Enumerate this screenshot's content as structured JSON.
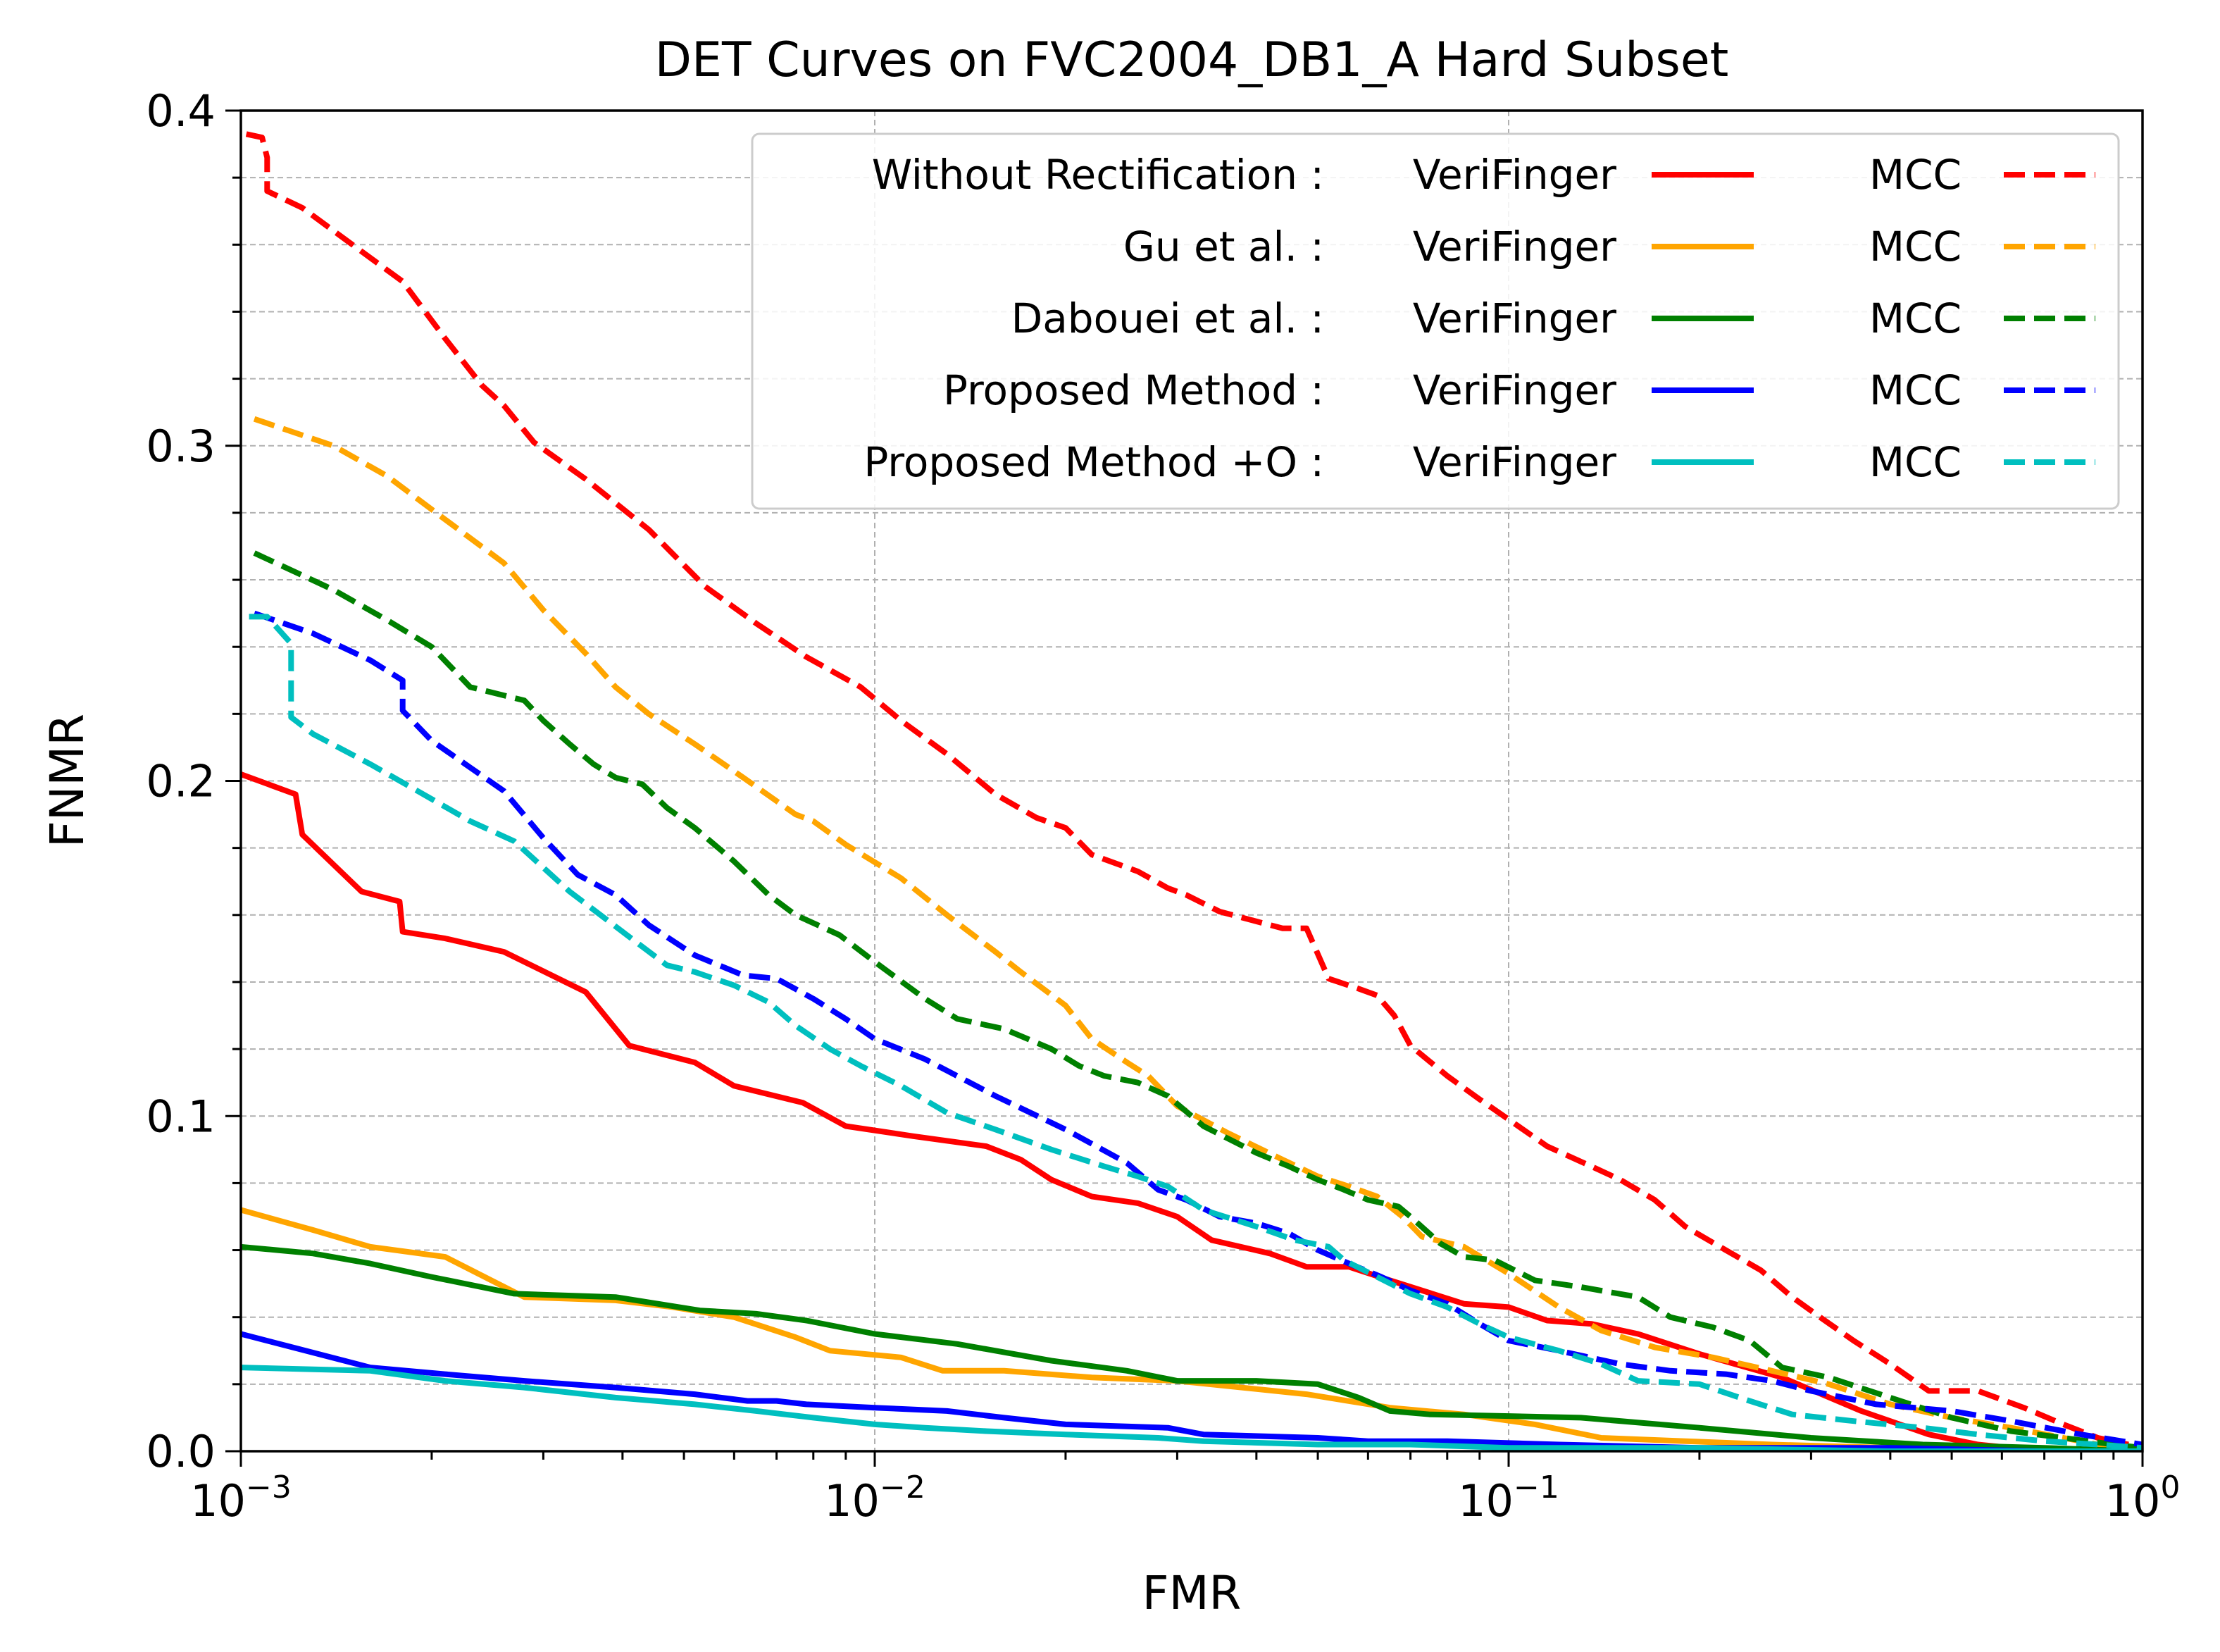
{
  "chart_data": {
    "type": "line",
    "title": "DET Curves on FVC2004_DB1_A Hard Subset",
    "xlabel": "FMR",
    "ylabel": "FNMR",
    "xscale": "log",
    "xlim": [
      0.001,
      1
    ],
    "ylim": [
      0,
      0.4
    ],
    "x_ticks": [
      {
        "value": 0.001,
        "base": "10",
        "exp": "−3"
      },
      {
        "value": 0.01,
        "base": "10",
        "exp": "−2"
      },
      {
        "value": 0.1,
        "base": "10",
        "exp": "−1"
      },
      {
        "value": 1,
        "base": "10",
        "exp": "0"
      }
    ],
    "y_ticks": [
      {
        "value": 0.0,
        "label": "0.0"
      },
      {
        "value": 0.1,
        "label": "0.1"
      },
      {
        "value": 0.2,
        "label": "0.2"
      },
      {
        "value": 0.3,
        "label": "0.3"
      },
      {
        "value": 0.4,
        "label": "0.4"
      }
    ],
    "grid": true,
    "legend_position": "top-right",
    "legend_rows": [
      {
        "method": "Without Rectification :",
        "color": "#ff0000",
        "solid_label": "VeriFinger",
        "dashed_label": "MCC"
      },
      {
        "method": "Gu et al. :",
        "color": "#ffa500",
        "solid_label": "VeriFinger",
        "dashed_label": "MCC"
      },
      {
        "method": "Dabouei et al. :",
        "color": "#008000",
        "solid_label": "VeriFinger",
        "dashed_label": "MCC"
      },
      {
        "method": "Proposed Method :",
        "color": "#0000ff",
        "solid_label": "VeriFinger",
        "dashed_label": "MCC"
      },
      {
        "method": "Proposed Method +O :",
        "color": "#00bfbf",
        "solid_label": "VeriFinger",
        "dashed_label": "MCC"
      }
    ],
    "series": [
      {
        "name": "Without Rectification : VeriFinger",
        "color": "#ff0000",
        "style": "solid",
        "x": [
          0.001,
          0.00122,
          0.00125,
          0.00155,
          0.00178,
          0.0018,
          0.0021,
          0.0026,
          0.0035,
          0.0041,
          0.0052,
          0.006,
          0.0077,
          0.009,
          0.0115,
          0.015,
          0.017,
          0.019,
          0.022,
          0.026,
          0.03,
          0.034,
          0.042,
          0.048,
          0.056,
          0.065,
          0.085,
          0.1,
          0.115,
          0.135,
          0.16,
          0.2,
          0.27,
          0.36,
          0.46,
          0.55,
          0.7,
          1.0
        ],
        "y": [
          0.202,
          0.196,
          0.184,
          0.167,
          0.164,
          0.155,
          0.153,
          0.149,
          0.137,
          0.121,
          0.116,
          0.109,
          0.104,
          0.097,
          0.094,
          0.091,
          0.087,
          0.081,
          0.076,
          0.074,
          0.07,
          0.063,
          0.059,
          0.055,
          0.055,
          0.051,
          0.044,
          0.043,
          0.039,
          0.038,
          0.035,
          0.029,
          0.022,
          0.012,
          0.005,
          0.002,
          0.0,
          0.0
        ]
      },
      {
        "name": "Without Rectification : MCC",
        "color": "#ff0000",
        "style": "dashed",
        "x": [
          0.00102,
          0.00108,
          0.0011,
          0.0011,
          0.00125,
          0.00155,
          0.0018,
          0.0021,
          0.0024,
          0.0026,
          0.0029,
          0.0035,
          0.0044,
          0.0054,
          0.0065,
          0.0078,
          0.0095,
          0.011,
          0.013,
          0.0155,
          0.018,
          0.02,
          0.022,
          0.026,
          0.029,
          0.031,
          0.035,
          0.044,
          0.048,
          0.052,
          0.058,
          0.062,
          0.066,
          0.07,
          0.08,
          0.09,
          0.1,
          0.115,
          0.135,
          0.15,
          0.17,
          0.19,
          0.22,
          0.25,
          0.28,
          0.31,
          0.35,
          0.4,
          0.46,
          0.55,
          0.65,
          0.75,
          0.85,
          0.95
        ],
        "y": [
          0.393,
          0.392,
          0.386,
          0.376,
          0.371,
          0.358,
          0.349,
          0.332,
          0.318,
          0.312,
          0.301,
          0.29,
          0.275,
          0.258,
          0.247,
          0.237,
          0.228,
          0.218,
          0.208,
          0.196,
          0.189,
          0.186,
          0.178,
          0.173,
          0.168,
          0.166,
          0.161,
          0.156,
          0.156,
          0.141,
          0.138,
          0.136,
          0.13,
          0.121,
          0.112,
          0.105,
          0.099,
          0.091,
          0.085,
          0.081,
          0.075,
          0.067,
          0.06,
          0.054,
          0.046,
          0.04,
          0.033,
          0.026,
          0.018,
          0.018,
          0.013,
          0.008,
          0.004,
          0.002
        ]
      },
      {
        "name": "Gu et al. : VeriFinger",
        "color": "#ffa500",
        "style": "solid",
        "x": [
          0.001,
          0.0013,
          0.0016,
          0.0021,
          0.0028,
          0.0039,
          0.0048,
          0.006,
          0.0075,
          0.0085,
          0.011,
          0.0128,
          0.016,
          0.022,
          0.03,
          0.048,
          0.065,
          0.085,
          0.11,
          0.14,
          0.19,
          0.26,
          0.4,
          0.6,
          1.0
        ],
        "y": [
          0.072,
          0.066,
          0.061,
          0.058,
          0.046,
          0.045,
          0.043,
          0.04,
          0.034,
          0.03,
          0.028,
          0.024,
          0.024,
          0.022,
          0.021,
          0.017,
          0.013,
          0.011,
          0.008,
          0.004,
          0.003,
          0.002,
          0.001,
          0.0,
          0.0
        ]
      },
      {
        "name": "Gu et al. : MCC",
        "color": "#ffa500",
        "style": "dashed",
        "x": [
          0.00105,
          0.0014,
          0.0017,
          0.0021,
          0.0026,
          0.003,
          0.0035,
          0.0039,
          0.0044,
          0.0052,
          0.0062,
          0.0075,
          0.008,
          0.009,
          0.011,
          0.013,
          0.0155,
          0.017,
          0.02,
          0.022,
          0.025,
          0.027,
          0.03,
          0.036,
          0.044,
          0.05,
          0.056,
          0.062,
          0.068,
          0.073,
          0.085,
          0.1,
          0.12,
          0.14,
          0.17,
          0.21,
          0.26,
          0.32,
          0.4,
          0.5,
          0.62,
          0.75,
          0.85,
          1.0
        ],
        "y": [
          0.308,
          0.3,
          0.291,
          0.278,
          0.265,
          0.251,
          0.238,
          0.228,
          0.22,
          0.211,
          0.201,
          0.19,
          0.188,
          0.181,
          0.171,
          0.16,
          0.149,
          0.143,
          0.133,
          0.123,
          0.116,
          0.112,
          0.103,
          0.095,
          0.087,
          0.082,
          0.079,
          0.076,
          0.07,
          0.064,
          0.061,
          0.053,
          0.043,
          0.036,
          0.031,
          0.028,
          0.024,
          0.02,
          0.014,
          0.01,
          0.007,
          0.004,
          0.002,
          0.001
        ]
      },
      {
        "name": "Dabouei et al. : VeriFinger",
        "color": "#008000",
        "style": "solid",
        "x": [
          0.001,
          0.0013,
          0.0016,
          0.002,
          0.0027,
          0.0039,
          0.0053,
          0.0065,
          0.0078,
          0.01,
          0.0135,
          0.019,
          0.025,
          0.03,
          0.04,
          0.05,
          0.058,
          0.065,
          0.075,
          0.13,
          0.2,
          0.3,
          0.45,
          0.7,
          1.0
        ],
        "y": [
          0.061,
          0.059,
          0.056,
          0.052,
          0.047,
          0.046,
          0.042,
          0.041,
          0.039,
          0.035,
          0.032,
          0.027,
          0.024,
          0.021,
          0.021,
          0.02,
          0.016,
          0.012,
          0.011,
          0.01,
          0.007,
          0.004,
          0.002,
          0.001,
          0.0
        ]
      },
      {
        "name": "Dabouei et al. : MCC",
        "color": "#008000",
        "style": "dashed",
        "x": [
          0.00105,
          0.0014,
          0.0017,
          0.002,
          0.0023,
          0.0028,
          0.003,
          0.0033,
          0.0036,
          0.0039,
          0.0043,
          0.0047,
          0.0052,
          0.006,
          0.0068,
          0.0075,
          0.0088,
          0.01,
          0.012,
          0.0135,
          0.016,
          0.019,
          0.021,
          0.023,
          0.026,
          0.029,
          0.033,
          0.04,
          0.045,
          0.05,
          0.055,
          0.06,
          0.067,
          0.07,
          0.078,
          0.085,
          0.095,
          0.11,
          0.13,
          0.16,
          0.18,
          0.21,
          0.24,
          0.27,
          0.32,
          0.4,
          0.5,
          0.62,
          0.75,
          0.9,
          1.0
        ],
        "y": [
          0.268,
          0.257,
          0.248,
          0.24,
          0.228,
          0.224,
          0.218,
          0.211,
          0.205,
          0.201,
          0.199,
          0.192,
          0.186,
          0.176,
          0.166,
          0.16,
          0.154,
          0.146,
          0.135,
          0.129,
          0.126,
          0.12,
          0.115,
          0.112,
          0.11,
          0.106,
          0.097,
          0.089,
          0.085,
          0.081,
          0.078,
          0.075,
          0.073,
          0.07,
          0.062,
          0.058,
          0.057,
          0.051,
          0.049,
          0.046,
          0.04,
          0.037,
          0.033,
          0.025,
          0.022,
          0.016,
          0.01,
          0.006,
          0.004,
          0.002,
          0.001
        ]
      },
      {
        "name": "Proposed Method : VeriFinger",
        "color": "#0000ff",
        "style": "solid",
        "x": [
          0.001,
          0.0016,
          0.0021,
          0.0028,
          0.0039,
          0.0052,
          0.0063,
          0.007,
          0.0078,
          0.01,
          0.013,
          0.016,
          0.02,
          0.029,
          0.033,
          0.05,
          0.06,
          0.08,
          0.12,
          0.2,
          0.4,
          0.7,
          1.0
        ],
        "y": [
          0.035,
          0.025,
          0.023,
          0.021,
          0.019,
          0.017,
          0.015,
          0.015,
          0.014,
          0.013,
          0.012,
          0.01,
          0.008,
          0.007,
          0.005,
          0.004,
          0.003,
          0.003,
          0.002,
          0.001,
          0.001,
          0.0,
          0.0
        ]
      },
      {
        "name": "Proposed Method : MCC",
        "color": "#0000ff",
        "style": "dashed",
        "x": [
          0.00105,
          0.0013,
          0.0016,
          0.0018,
          0.0018,
          0.002,
          0.0023,
          0.0026,
          0.003,
          0.0034,
          0.0039,
          0.0044,
          0.0052,
          0.0062,
          0.007,
          0.008,
          0.009,
          0.01,
          0.012,
          0.0155,
          0.02,
          0.025,
          0.028,
          0.031,
          0.035,
          0.04,
          0.045,
          0.05,
          0.056,
          0.063,
          0.07,
          0.08,
          0.09,
          0.1,
          0.12,
          0.15,
          0.18,
          0.22,
          0.26,
          0.3,
          0.38,
          0.5,
          0.62,
          0.8,
          1.0
        ],
        "y": [
          0.25,
          0.244,
          0.236,
          0.23,
          0.221,
          0.212,
          0.204,
          0.197,
          0.183,
          0.172,
          0.166,
          0.157,
          0.148,
          0.142,
          0.141,
          0.135,
          0.129,
          0.123,
          0.117,
          0.106,
          0.096,
          0.086,
          0.078,
          0.075,
          0.07,
          0.068,
          0.065,
          0.06,
          0.056,
          0.052,
          0.048,
          0.044,
          0.038,
          0.033,
          0.03,
          0.026,
          0.024,
          0.023,
          0.021,
          0.018,
          0.014,
          0.012,
          0.009,
          0.005,
          0.002
        ]
      },
      {
        "name": "Proposed Method +O : VeriFinger",
        "color": "#00bfbf",
        "style": "solid",
        "x": [
          0.001,
          0.0016,
          0.0021,
          0.0028,
          0.0039,
          0.0052,
          0.0065,
          0.008,
          0.01,
          0.012,
          0.015,
          0.02,
          0.028,
          0.033,
          0.05,
          0.07,
          0.1,
          0.2,
          0.4,
          0.7,
          1.0
        ],
        "y": [
          0.025,
          0.024,
          0.021,
          0.019,
          0.016,
          0.014,
          0.012,
          0.01,
          0.008,
          0.007,
          0.006,
          0.005,
          0.004,
          0.003,
          0.002,
          0.002,
          0.001,
          0.001,
          0.0,
          0.0,
          0.0
        ]
      },
      {
        "name": "Proposed Method +O : MCC",
        "color": "#00bfbf",
        "style": "dashed",
        "x": [
          0.00103,
          0.0011,
          0.0012,
          0.0012,
          0.0013,
          0.0016,
          0.0019,
          0.0023,
          0.0027,
          0.0033,
          0.004,
          0.0047,
          0.0052,
          0.006,
          0.0068,
          0.0075,
          0.0085,
          0.0095,
          0.011,
          0.013,
          0.0155,
          0.019,
          0.023,
          0.026,
          0.029,
          0.033,
          0.04,
          0.046,
          0.052,
          0.055,
          0.062,
          0.07,
          0.08,
          0.09,
          0.1,
          0.12,
          0.14,
          0.16,
          0.2,
          0.24,
          0.28,
          0.35,
          0.45,
          0.55,
          0.7,
          0.85,
          1.0
        ],
        "y": [
          0.249,
          0.249,
          0.241,
          0.219,
          0.214,
          0.205,
          0.197,
          0.188,
          0.182,
          0.167,
          0.155,
          0.145,
          0.143,
          0.139,
          0.134,
          0.127,
          0.12,
          0.115,
          0.109,
          0.101,
          0.096,
          0.09,
          0.085,
          0.082,
          0.079,
          0.072,
          0.067,
          0.063,
          0.061,
          0.057,
          0.052,
          0.047,
          0.043,
          0.038,
          0.034,
          0.03,
          0.026,
          0.021,
          0.02,
          0.015,
          0.011,
          0.009,
          0.007,
          0.005,
          0.003,
          0.002,
          0.001
        ]
      }
    ]
  }
}
